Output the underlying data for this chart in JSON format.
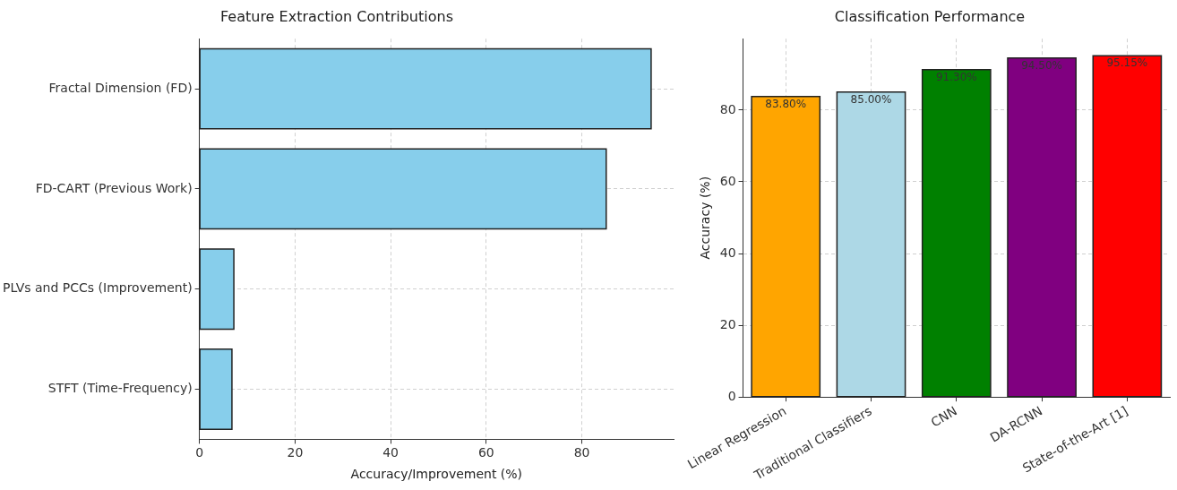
{
  "chart_data": [
    {
      "type": "bar",
      "orientation": "horizontal",
      "title": "Feature Extraction Contributions",
      "xlabel": "Accuracy/Improvement (%)",
      "categories": [
        "Fractal Dimension (FD)",
        "FD-CART (Previous Work)",
        "PLVs and PCCs (Improvement)",
        "STFT (Time-Frequency)"
      ],
      "values": [
        94.5,
        85.1,
        7.2,
        6.8
      ],
      "color": "#87ceeb",
      "xlim": [
        0,
        99.2
      ],
      "xticks": [
        0,
        20,
        40,
        60,
        80
      ],
      "grid": true
    },
    {
      "type": "bar",
      "title": "Classification Performance",
      "ylabel": "Accuracy (%)",
      "categories": [
        "Linear Regression",
        "Traditional Classifiers",
        "CNN",
        "DA-RCNN",
        "State-of-the-Art [1]"
      ],
      "values": [
        83.8,
        85.0,
        91.3,
        94.5,
        95.15
      ],
      "colors": [
        "#ffa500",
        "#add8e6",
        "#008000",
        "#800080",
        "#ff0000"
      ],
      "value_labels": [
        "83.80%",
        "85.00%",
        "91.30%",
        "94.50%",
        "95.15%"
      ],
      "ylim": [
        0,
        99.9
      ],
      "yticks": [
        0,
        20,
        40,
        60,
        80
      ],
      "grid": true
    }
  ]
}
